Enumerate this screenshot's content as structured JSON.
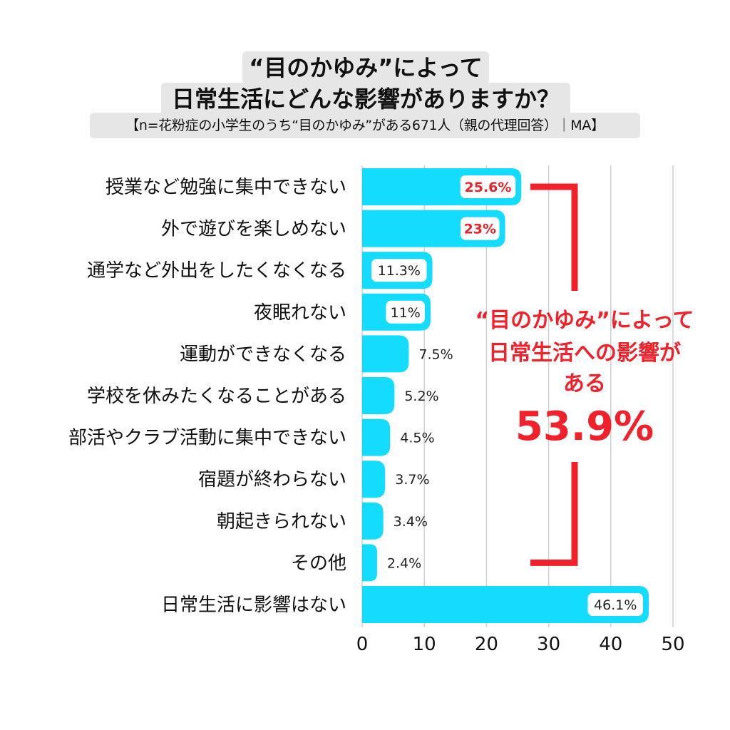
{
  "header": {
    "title_line1": "“目のかゆみ”によって",
    "title_line2": "日常生活にどんな影響がありますか？",
    "subtitle": "【n=花粉症の小学生のうち“目のかゆみ”がある671人（親の代理回答）｜MA】"
  },
  "annotation": {
    "line1": "“目のかゆみ”によって",
    "line2": "日常生活への影響が",
    "line3": "ある",
    "percent": "53.9%"
  },
  "colors": {
    "bar": "#14dcff",
    "highlight": "#f0212b",
    "grid": "#cfcfcf"
  },
  "chart_data": {
    "type": "bar",
    "orientation": "horizontal",
    "categories": [
      "授業など勉強に集中できない",
      "外で遊びを楽しめない",
      "通学など外出をしたくなくなる",
      "夜眠れない",
      "運動ができなくなる",
      "学校を休みたくなることがある",
      "部活やクラブ活動に集中できない",
      "宿題が終わらない",
      "朝起きられない",
      "その他",
      "日常生活に影響はない"
    ],
    "values": [
      25.6,
      23,
      11.3,
      11,
      7.5,
      5.2,
      4.5,
      3.7,
      3.4,
      2.4,
      46.1
    ],
    "value_labels": [
      "25.6%",
      "23%",
      "11.3%",
      "11%",
      "7.5%",
      "5.2%",
      "4.5%",
      "3.7%",
      "3.4%",
      "2.4%",
      "46.1%"
    ],
    "label_style": [
      "red",
      "red",
      "boxed",
      "boxed",
      "plain",
      "plain",
      "plain",
      "plain",
      "plain",
      "plain",
      "boxed"
    ],
    "xlim": [
      0,
      50
    ],
    "xticks": [
      0,
      10,
      20,
      30,
      40,
      50
    ],
    "grid": true,
    "bracket_range": [
      0,
      9
    ]
  }
}
